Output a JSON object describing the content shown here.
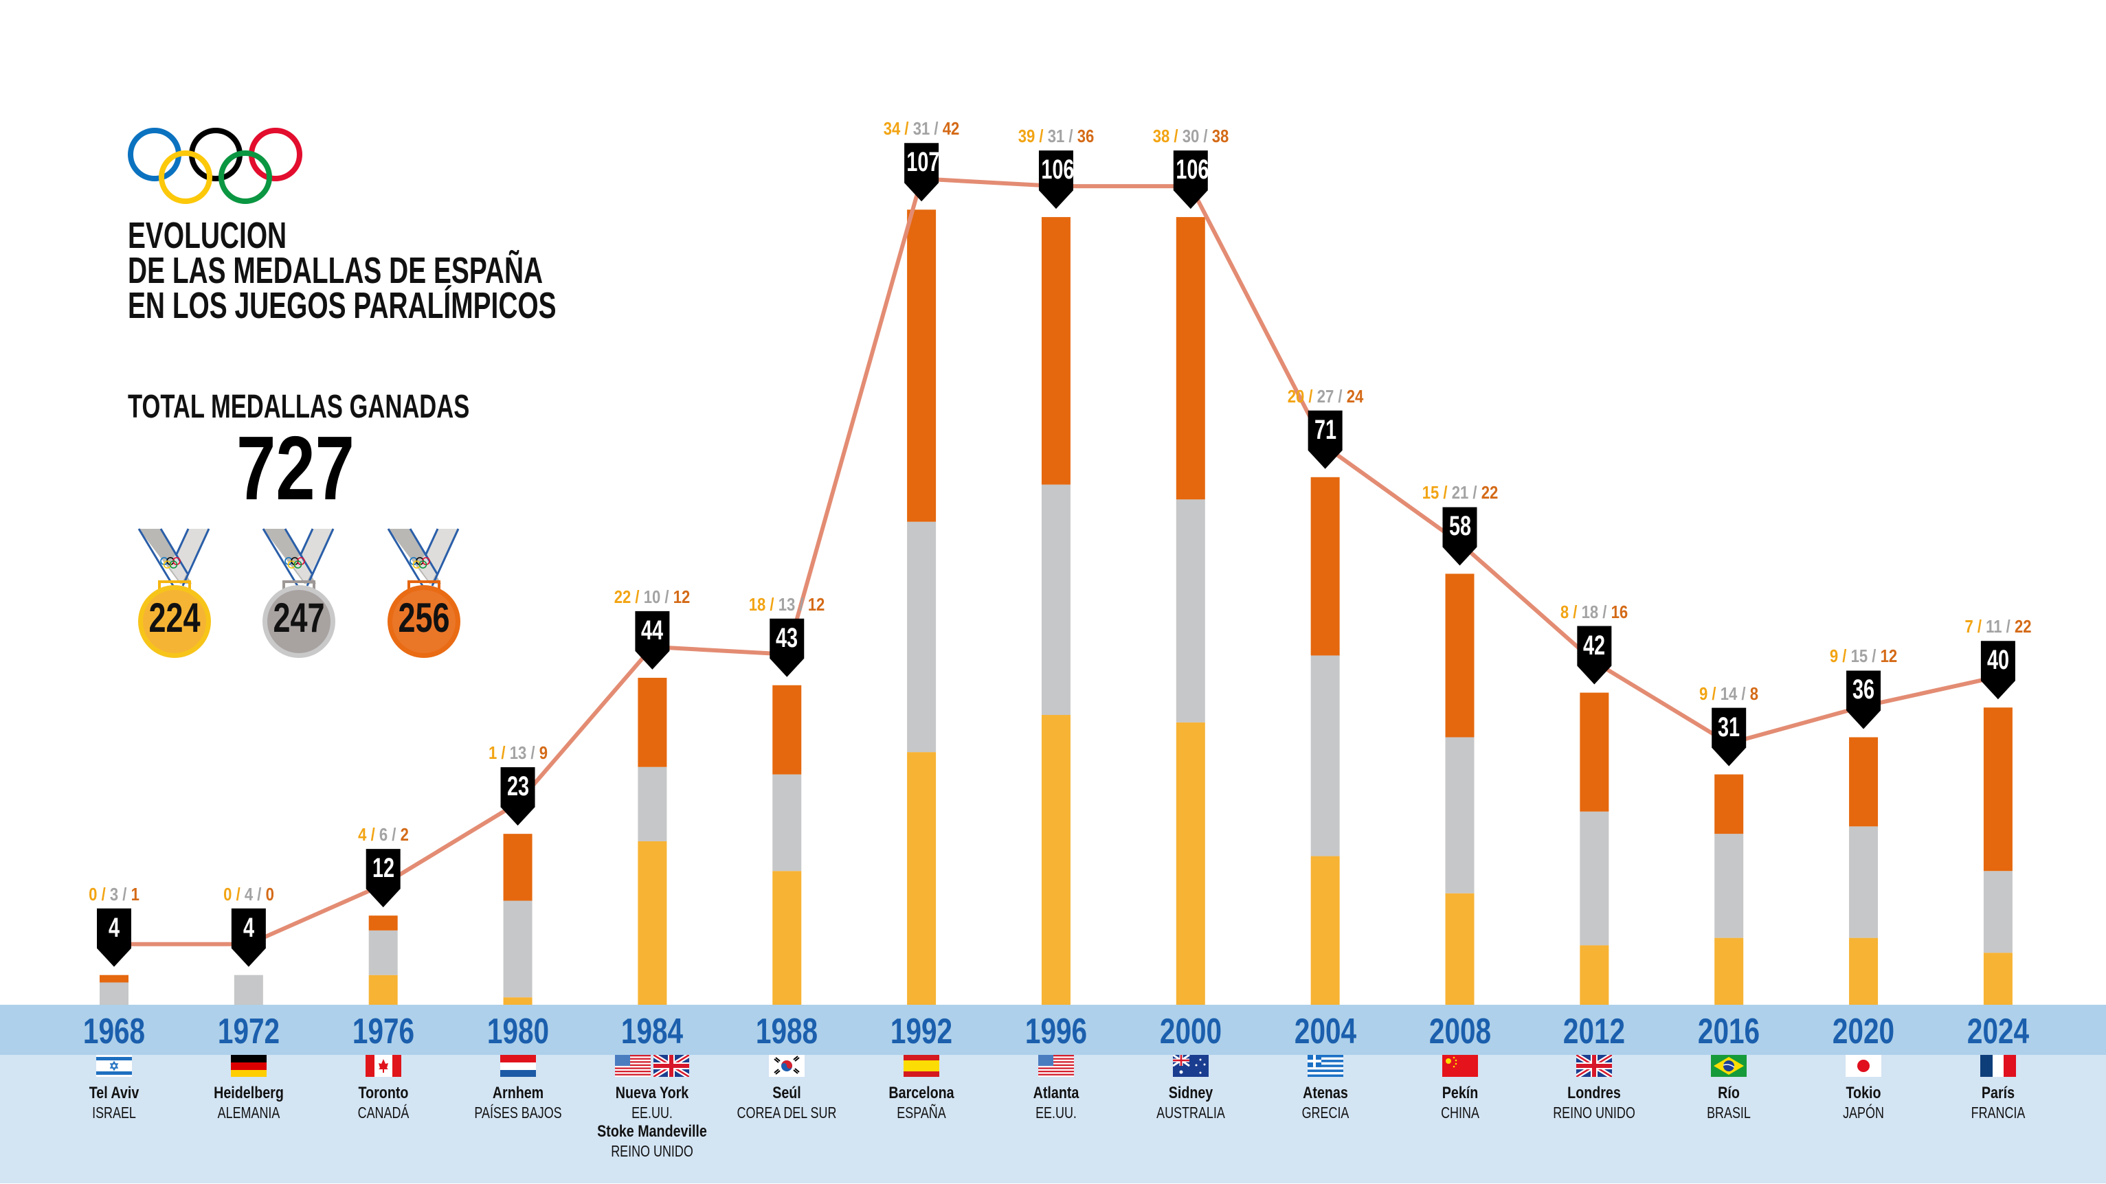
{
  "header": {
    "title_lines": [
      "EVOLUCION",
      "DE LAS MEDALLAS DE ESPAÑA",
      "EN LOS JUEGOS PARALÍMPICOS"
    ],
    "logo": "olympic-rings-icon"
  },
  "totals": {
    "label": "TOTAL MEDALLAS GANADAS",
    "total": "727",
    "gold": "224",
    "silver": "247",
    "bronze": "256"
  },
  "colors": {
    "gold": "#f7b334",
    "silver": "#c6c7c8",
    "bronze": "#e5680e",
    "line": "#e38c73",
    "marker": "#000000",
    "year_text": "#1b5fad",
    "band_dark": "#aed0ea",
    "band_light": "#d3e4f3"
  },
  "chart_data": {
    "type": "bar",
    "stacked": true,
    "title": "EVOLUCION DE LAS MEDALLAS DE ESPAÑA EN LOS JUEGOS PARALÍMPICOS",
    "xlabel": "",
    "ylabel": "",
    "ylim": [
      0,
      107
    ],
    "grid": false,
    "legend": "none",
    "categories": [
      "1968",
      "1972",
      "1976",
      "1980",
      "1984",
      "1988",
      "1992",
      "1996",
      "2000",
      "2004",
      "2008",
      "2012",
      "2016",
      "2020",
      "2024"
    ],
    "series": [
      {
        "name": "Oro",
        "values": [
          0,
          0,
          4,
          1,
          22,
          18,
          34,
          39,
          38,
          20,
          15,
          8,
          9,
          9,
          7
        ]
      },
      {
        "name": "Plata",
        "values": [
          3,
          4,
          6,
          13,
          10,
          13,
          31,
          31,
          30,
          27,
          21,
          18,
          14,
          15,
          11
        ]
      },
      {
        "name": "Bronce",
        "values": [
          1,
          0,
          2,
          9,
          12,
          12,
          42,
          36,
          38,
          24,
          22,
          16,
          8,
          12,
          22
        ]
      }
    ],
    "line": {
      "name": "Total",
      "values": [
        4,
        4,
        12,
        23,
        44,
        43,
        107,
        106,
        106,
        71,
        58,
        42,
        31,
        36,
        40
      ]
    },
    "hosts": [
      {
        "year": "1968",
        "cities": [
          {
            "city": "Tel Aviv",
            "country": "ISRAEL",
            "flag": "israel-flag-icon"
          }
        ]
      },
      {
        "year": "1972",
        "cities": [
          {
            "city": "Heidelberg",
            "country": "ALEMANIA",
            "flag": "germany-flag-icon"
          }
        ]
      },
      {
        "year": "1976",
        "cities": [
          {
            "city": "Toronto",
            "country": "CANADÁ",
            "flag": "canada-flag-icon"
          }
        ]
      },
      {
        "year": "1980",
        "cities": [
          {
            "city": "Arnhem",
            "country": "PAÍSES BAJOS",
            "flag": "netherlands-flag-icon"
          }
        ]
      },
      {
        "year": "1984",
        "cities": [
          {
            "city": "Nueva York",
            "country": "EE.UU.",
            "flag": "usa-flag-icon"
          },
          {
            "city": "Stoke Mandeville",
            "country": "REINO UNIDO",
            "flag": "uk-flag-icon"
          }
        ]
      },
      {
        "year": "1988",
        "cities": [
          {
            "city": "Seúl",
            "country": "COREA DEL SUR",
            "flag": "south-korea-flag-icon"
          }
        ]
      },
      {
        "year": "1992",
        "cities": [
          {
            "city": "Barcelona",
            "country": "ESPAÑA",
            "flag": "spain-flag-icon"
          }
        ]
      },
      {
        "year": "1996",
        "cities": [
          {
            "city": "Atlanta",
            "country": "EE.UU.",
            "flag": "usa-flag-icon"
          }
        ]
      },
      {
        "year": "2000",
        "cities": [
          {
            "city": "Sidney",
            "country": "AUSTRALIA",
            "flag": "australia-flag-icon"
          }
        ]
      },
      {
        "year": "2004",
        "cities": [
          {
            "city": "Atenas",
            "country": "GRECIA",
            "flag": "greece-flag-icon"
          }
        ]
      },
      {
        "year": "2008",
        "cities": [
          {
            "city": "Pekín",
            "country": "CHINA",
            "flag": "china-flag-icon"
          }
        ]
      },
      {
        "year": "2012",
        "cities": [
          {
            "city": "Londres",
            "country": "REINO UNIDO",
            "flag": "uk-flag-icon"
          }
        ]
      },
      {
        "year": "2016",
        "cities": [
          {
            "city": "Río",
            "country": "BRASIL",
            "flag": "brazil-flag-icon"
          }
        ]
      },
      {
        "year": "2020",
        "cities": [
          {
            "city": "Tokio",
            "country": "JAPÓN",
            "flag": "japan-flag-icon"
          }
        ]
      },
      {
        "year": "2024",
        "cities": [
          {
            "city": "París",
            "country": "FRANCIA",
            "flag": "france-flag-icon"
          }
        ]
      }
    ]
  }
}
